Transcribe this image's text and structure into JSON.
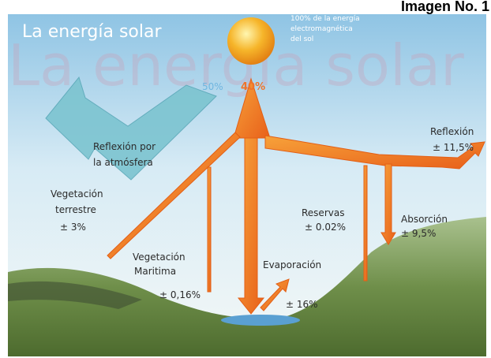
{
  "header": {
    "label": "Imagen No. 1"
  },
  "title": "La energía solar",
  "watermark": "La energía solar",
  "sun_caption": [
    "100% de la energía",
    "electromagnética",
    "del sol"
  ],
  "percent_atmosphere": "50%",
  "percent_peak": "40%",
  "labels": {
    "atmosphere": [
      "Reflexión por",
      "la atmósfera"
    ],
    "reflection": [
      "Reflexión",
      "± 11,5%"
    ],
    "land_vegetation": [
      "Vegetación",
      "terrestre",
      "± 3%"
    ],
    "sea_vegetation": [
      "Vegetación",
      "Maritima",
      "± 0,16%"
    ],
    "reserves": [
      "Reservas",
      "± 0.02%"
    ],
    "absorption": [
      "Absorción",
      "± 9,5%"
    ],
    "evaporation": [
      "Evaporación",
      "± 16%"
    ]
  }
}
